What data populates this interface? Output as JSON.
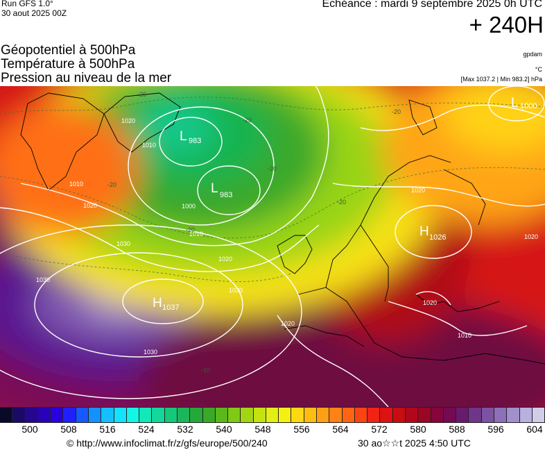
{
  "header": {
    "run_label": "Run GFS 1.0°",
    "run_date": "30 aout 2025 00Z",
    "echeance": "Echéance : mardi 9 septembre 2025 0h UTC",
    "forecast_hour": "+ 240H"
  },
  "titles": {
    "line1": "Géopotentiel à 500hPa",
    "line2": "Température à 500hPa",
    "line3": "Pression au niveau de la mer"
  },
  "units": {
    "geopotential": "gpdam",
    "temperature": "°C",
    "pressure_range": "[Max 1037.2 | Min 983.2] hPa"
  },
  "map": {
    "pressure_centers": [
      {
        "type": "L",
        "value": "1000"
      },
      {
        "type": "L",
        "value": "983"
      },
      {
        "type": "L",
        "value": "983"
      },
      {
        "type": "H",
        "value": "1026"
      },
      {
        "type": "H",
        "value": "1037"
      }
    ],
    "isobar_labels": [
      "1010",
      "1020",
      "1030",
      "1000",
      "1010",
      "1020",
      "1030",
      "1030",
      "1020",
      "1020",
      "1020",
      "1020",
      "1030",
      "1010",
      "1020",
      "1010"
    ],
    "isotherm_labels": [
      "-20",
      "-20",
      "-20",
      "-20",
      "-20",
      "-20",
      "-20",
      "-10"
    ]
  },
  "legend": {
    "colors": [
      "#0a0a28",
      "#1a0a66",
      "#24068f",
      "#2a00b8",
      "#2b00e0",
      "#1f1fff",
      "#1559ff",
      "#1590ff",
      "#14c0ff",
      "#14e3ff",
      "#14f5e6",
      "#12e8b8",
      "#12d89a",
      "#15c87a",
      "#1ab65a",
      "#24a83a",
      "#3aa828",
      "#5ab81a",
      "#7fca14",
      "#a2d614",
      "#c4e214",
      "#e2ee14",
      "#f5f014",
      "#ffd814",
      "#ffbd14",
      "#ffa014",
      "#ff8214",
      "#ff6414",
      "#fb4414",
      "#f02414",
      "#dd1212",
      "#c80c12",
      "#b0081a",
      "#9a0624",
      "#84063a",
      "#740a52",
      "#6a1a6e",
      "#70348a",
      "#7c52a2",
      "#8c70b8",
      "#a090cc",
      "#b8b0de",
      "#d2cce8"
    ],
    "tick_labels": [
      "500",
      "508",
      "516",
      "524",
      "532",
      "540",
      "548",
      "556",
      "564",
      "572",
      "580",
      "588",
      "596",
      "604"
    ]
  },
  "footer": {
    "copyright": "© http://www.infoclimat.fr/z/gfs/europe/500/240",
    "timestamp": "30 ao☆☆t 2025  4:50 UTC"
  }
}
